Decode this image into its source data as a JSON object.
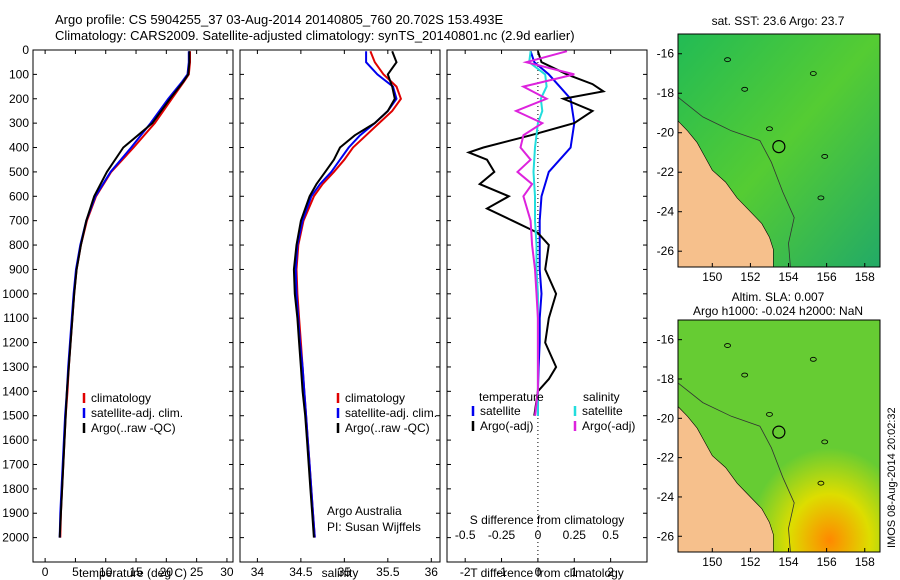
{
  "header": {
    "line1": "Argo profile: CS 5904255_37 03-Aug-2014 20140805_760 20.702S 153.493E",
    "line2": "Climatology: CARS2009. Satellite-adjusted climatology: synTS_20140801.nc (2.9d earlier)"
  },
  "map_top_title": "sat. SST: 23.6 Argo: 23.7",
  "map_bottom_title_1": "Altim. SLA: 0.007",
  "map_bottom_title_2": "Argo h1000: -0.024 h2000: NaN",
  "credit": "IMOS 08-Aug-2014 20:02:32",
  "attribution_1": "Argo Australia",
  "attribution_2": "PI: Susan Wijffels",
  "colors": {
    "climatology": "#e00000",
    "satellite": "#0000ee",
    "argo": "#000000",
    "sat_salinity": "#22dddd",
    "argo_salinity": "#dd22dd",
    "land": "#f6c08c"
  },
  "chart_data": [
    {
      "type": "line",
      "xlabel": "temperature (deg C)",
      "ylabel": "",
      "xlim": [
        -2,
        31
      ],
      "ylim": [
        2100,
        0
      ],
      "xticks": [
        0,
        5,
        10,
        15,
        20,
        25,
        30
      ],
      "yticks": [
        0,
        100,
        200,
        300,
        400,
        500,
        600,
        700,
        800,
        900,
        1000,
        1100,
        1200,
        1300,
        1400,
        1500,
        1600,
        1700,
        1800,
        1900,
        2000
      ],
      "legend": [
        "climatology",
        "satellite-adj. clim.",
        "Argo(..raw -QC)"
      ],
      "depth": [
        5,
        50,
        100,
        130,
        200,
        300,
        400,
        500,
        600,
        700,
        800,
        900,
        1000,
        1100,
        1200,
        1300,
        1400,
        1500,
        1600,
        1700,
        1800,
        1900,
        2000
      ],
      "series": [
        {
          "name": "climatology",
          "values": [
            23.9,
            23.9,
            23.7,
            22.9,
            20.9,
            18.1,
            14.6,
            10.9,
            8.4,
            6.9,
            5.9,
            5.2,
            4.8,
            4.5,
            4.2,
            3.9,
            3.7,
            3.4,
            3.2,
            3.0,
            2.8,
            2.6,
            2.5
          ]
        },
        {
          "name": "satellite-adj. clim.",
          "values": [
            23.7,
            23.7,
            23.5,
            22.6,
            20.3,
            17.4,
            14.2,
            10.8,
            8.3,
            6.8,
            5.8,
            5.1,
            4.7,
            4.4,
            4.1,
            3.8,
            3.6,
            3.3,
            3.1,
            2.9,
            2.7,
            2.5,
            2.4
          ]
        },
        {
          "name": "Argo(..raw -QC)",
          "values": [
            23.8,
            23.8,
            23.6,
            22.8,
            20.6,
            17.7,
            12.9,
            10.2,
            8.1,
            6.8,
            5.9,
            5.2,
            4.8,
            4.5,
            4.2,
            3.9,
            3.6,
            3.4,
            3.2,
            3.0,
            2.8,
            2.6,
            2.4
          ]
        }
      ]
    },
    {
      "type": "line",
      "xlabel": "salinity",
      "ylabel": "",
      "xlim": [
        33.8,
        36.1
      ],
      "ylim": [
        2100,
        0
      ],
      "xticks": [
        34,
        34.5,
        35,
        35.5,
        36
      ],
      "legend": [
        "climatology",
        "satellite-adj. clim.",
        "Argo(..raw -QC)"
      ],
      "depth": [
        5,
        50,
        100,
        150,
        200,
        250,
        300,
        350,
        400,
        450,
        500,
        550,
        600,
        700,
        800,
        900,
        1000,
        1100,
        1200,
        1300,
        1400,
        1500,
        1600,
        1700,
        1800,
        1900,
        2000
      ],
      "series": [
        {
          "name": "climatology",
          "values": [
            35.3,
            35.35,
            35.45,
            35.6,
            35.65,
            35.55,
            35.4,
            35.25,
            35.1,
            35.0,
            34.88,
            34.75,
            34.65,
            34.53,
            34.47,
            34.45,
            34.46,
            34.48,
            34.5,
            34.52,
            34.54,
            34.56,
            34.58,
            34.6,
            34.62,
            34.64,
            34.66
          ]
        },
        {
          "name": "satellite-adj. clim.",
          "values": [
            35.25,
            35.25,
            35.38,
            35.56,
            35.6,
            35.5,
            35.35,
            35.18,
            35.05,
            34.95,
            34.85,
            34.72,
            34.62,
            34.52,
            34.46,
            34.44,
            34.45,
            34.47,
            34.49,
            34.52,
            34.54,
            34.56,
            34.58,
            34.6,
            34.62,
            34.64,
            34.66
          ]
        },
        {
          "name": "Argo(..raw -QC)",
          "values": [
            35.55,
            35.6,
            35.5,
            35.55,
            35.58,
            35.5,
            35.35,
            35.12,
            34.95,
            34.88,
            34.78,
            34.68,
            34.6,
            34.5,
            34.45,
            34.42,
            34.43,
            34.46,
            34.48,
            34.5,
            34.52,
            34.55,
            34.57,
            34.59,
            34.61,
            34.63,
            34.65
          ]
        }
      ]
    },
    {
      "type": "line",
      "xlabel": "T difference from climatology",
      "xlabel_top": "S difference from climatology",
      "xlim": [
        -2.5,
        3.0
      ],
      "ylim": [
        2100,
        0
      ],
      "xticks": [
        -2,
        -1,
        0,
        1,
        2
      ],
      "xticks_top": [
        -0.5,
        -0.25,
        0,
        0.25,
        0.5
      ],
      "legend_temperature": {
        "heading": "temperature",
        "items": [
          "satellite",
          "Argo(-adj)"
        ]
      },
      "legend_salinity": {
        "heading": "salinity",
        "items": [
          "satellite",
          "Argo(-adj)"
        ]
      },
      "series": [
        {
          "name": "temperature satellite",
          "depth": [
            5,
            50,
            100,
            150,
            200,
            300,
            400,
            500,
            600,
            700,
            800,
            900,
            1000,
            1100,
            1200,
            1300,
            1400,
            1500
          ],
          "values": [
            -0.2,
            -0.1,
            0.3,
            0.6,
            0.9,
            1.0,
            0.9,
            0.3,
            0.1,
            0.05,
            0.05,
            0.05,
            0.1,
            0.05,
            0.05,
            0.02,
            0.0,
            0.0
          ]
        },
        {
          "name": "temperature Argo(-adj)",
          "depth": [
            5,
            50,
            100,
            140,
            170,
            200,
            250,
            300,
            350,
            400,
            420,
            450,
            500,
            550,
            600,
            650,
            700,
            750,
            800,
            900,
            1000,
            1100,
            1200,
            1300,
            1350,
            1400,
            1500
          ],
          "values": [
            0.0,
            0.1,
            0.8,
            1.5,
            1.8,
            0.7,
            1.5,
            1.0,
            -0.2,
            -1.5,
            -1.9,
            -1.4,
            -1.2,
            -1.6,
            -0.8,
            -1.4,
            -0.7,
            0.0,
            0.3,
            0.2,
            0.5,
            0.3,
            0.2,
            0.5,
            0.3,
            0.0,
            -0.1
          ]
        },
        {
          "name": "salinity satellite",
          "depth": [
            5,
            50,
            100,
            150,
            200,
            250,
            300,
            400,
            500,
            600,
            700,
            800,
            900,
            1000,
            1100,
            1200,
            1300,
            1400,
            1500
          ],
          "values": [
            -0.05,
            -0.06,
            0.05,
            0.06,
            0.02,
            0.03,
            0.0,
            -0.02,
            -0.03,
            -0.02,
            -0.02,
            -0.01,
            -0.01,
            0.0,
            0.0,
            0.0,
            0.0,
            0.0,
            0.0
          ]
        },
        {
          "name": "salinity Argo(-adj)",
          "depth": [
            5,
            50,
            100,
            150,
            200,
            250,
            300,
            350,
            400,
            450,
            500,
            550,
            600,
            700,
            800,
            900,
            1000,
            1100,
            1200,
            1300,
            1400,
            1500
          ],
          "values": [
            0.2,
            -0.08,
            0.25,
            -0.1,
            0.06,
            -0.15,
            0.03,
            -0.1,
            -0.12,
            -0.05,
            -0.14,
            -0.04,
            -0.1,
            -0.05,
            -0.04,
            -0.02,
            -0.01,
            0.0,
            0.0,
            0.0,
            0.0,
            -0.02
          ]
        }
      ]
    },
    {
      "type": "heatmap",
      "title": "sat. SST: 23.6 Argo: 23.7",
      "xlim": [
        148.2,
        158.8
      ],
      "ylim": [
        -26.8,
        -15.0
      ],
      "xticks": [
        150,
        152,
        154,
        156,
        158
      ],
      "yticks": [
        -16,
        -18,
        -20,
        -22,
        -24,
        -26
      ],
      "float_position": [
        153.493,
        -20.702
      ]
    },
    {
      "type": "heatmap",
      "title": "Altim. SLA: 0.007 / Argo h1000: -0.024 h2000: NaN",
      "xlim": [
        148.2,
        158.8
      ],
      "ylim": [
        -26.8,
        -15.0
      ],
      "xticks": [
        150,
        152,
        154,
        156,
        158
      ],
      "yticks": [
        -16,
        -18,
        -20,
        -22,
        -24,
        -26
      ],
      "float_position": [
        153.493,
        -20.702
      ]
    }
  ]
}
